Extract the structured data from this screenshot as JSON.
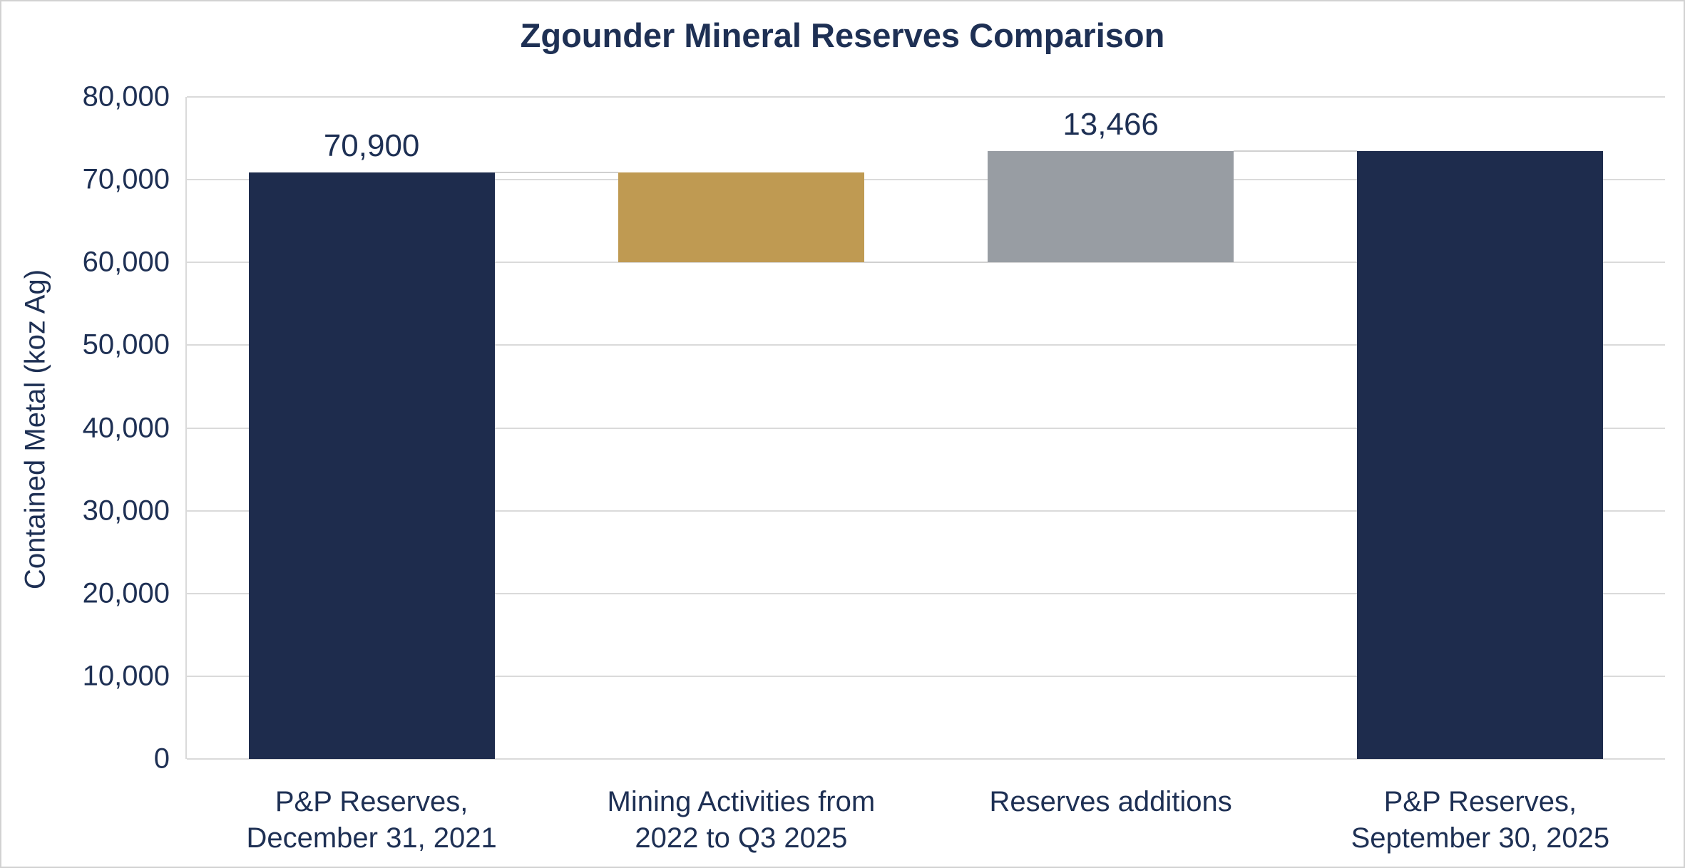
{
  "title": "Zgounder Mineral Reserves Comparison",
  "colors": {
    "navy": "#1e2c4d",
    "gold": "#bf9a52",
    "gray": "#989da3",
    "grid": "#dadada",
    "connector": "#d0d0d0",
    "text": "#1e3054",
    "background": "#ffffff",
    "card_border": "#d2d2d2"
  },
  "chart_data": {
    "type": "bar",
    "subtype": "waterfall",
    "title": "Zgounder Mineral Reserves Comparison",
    "xlabel": "",
    "ylabel": "Contained Metal (koz Ag)",
    "ylim": [
      0,
      80000
    ],
    "ytick_step": 10000,
    "yticks": [
      0,
      10000,
      20000,
      30000,
      40000,
      50000,
      60000,
      70000,
      80000
    ],
    "ytick_labels": [
      "0",
      "10,000",
      "20,000",
      "30,000",
      "40,000",
      "50,000",
      "60,000",
      "70,000",
      "80,000"
    ],
    "grid": true,
    "legend": "none",
    "categories": [
      "P&P Reserves,\nDecember 31, 2021",
      "Mining Activities from\n2022 to Q3 2025",
      "Reserves additions",
      "P&P Reserves,\nSeptember 30, 2025"
    ],
    "bars": [
      {
        "category": "P&P Reserves, December 31, 2021",
        "base": 0,
        "top": 70900,
        "value": 70900,
        "color": "navy",
        "label": "70,900"
      },
      {
        "category": "Mining Activities from 2022 to Q3 2025",
        "base": 60000,
        "top": 70900,
        "value": -10900,
        "color": "gold",
        "label": ""
      },
      {
        "category": "Reserves additions",
        "base": 60000,
        "top": 73466,
        "value": 13466,
        "color": "gray",
        "label": "13,466"
      },
      {
        "category": "P&P Reserves, September 30, 2025",
        "base": 0,
        "top": 73466,
        "value": 73466,
        "color": "navy",
        "label": ""
      }
    ],
    "connectors": [
      {
        "after_bar": 0,
        "level": 70900
      },
      {
        "after_bar": 1,
        "level": 60000
      },
      {
        "after_bar": 2,
        "level": 73466
      }
    ]
  }
}
